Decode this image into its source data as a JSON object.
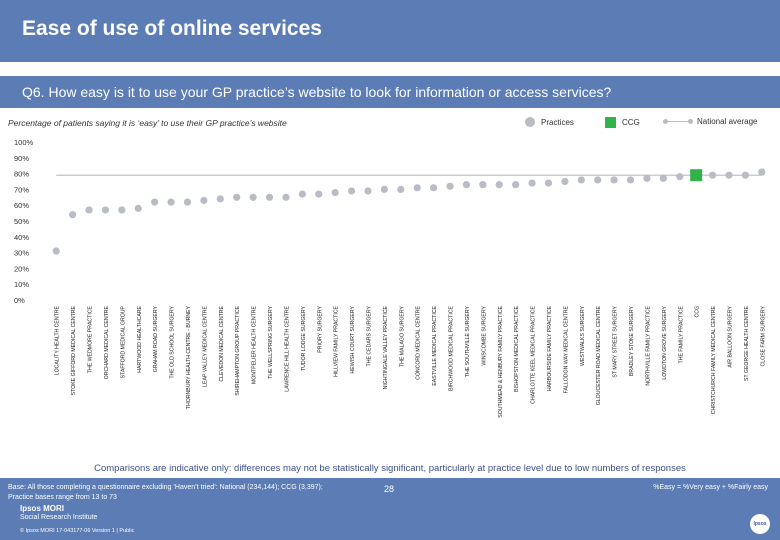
{
  "header": {
    "title": "Ease of use of online services"
  },
  "question": "Q6. How easy is it to use your GP practice’s website to look for information or access services?",
  "subtitle": "Percentage of patients saying it is ‘easy’ to use their GP practice’s website",
  "legend": {
    "practices": "Practices",
    "ccg": "CCG",
    "national": "National average"
  },
  "colors": {
    "practice_dot": "#b8bcc4",
    "ccg_marker": "#2fb34a",
    "national_line": "#b8bcc4",
    "header_bg": "#5b7cb5",
    "note_text": "#3e4f8a"
  },
  "chart_data": {
    "type": "scatter",
    "ylim": [
      0,
      100
    ],
    "yticks": [
      "0%",
      "10%",
      "20%",
      "30%",
      "40%",
      "50%",
      "60%",
      "70%",
      "80%",
      "90%",
      "100%"
    ],
    "grid": false,
    "legend_position": "top-right",
    "national_average": 79,
    "points": [
      {
        "label": "LOCALITY HEALTH CENTRE",
        "value": 31,
        "type": "practice"
      },
      {
        "label": "STOKE GIFFORD MEDICAL CENTRE",
        "value": 54,
        "type": "practice"
      },
      {
        "label": "THE WEDMORE PRACTICE",
        "value": 57,
        "type": "practice"
      },
      {
        "label": "ORCHARD MEDICAL CENTRE",
        "value": 57,
        "type": "practice"
      },
      {
        "label": "STAFFORD MEDICAL GROUP",
        "value": 57,
        "type": "practice"
      },
      {
        "label": "HARTWOOD HEALTHCARE",
        "value": 58,
        "type": "practice"
      },
      {
        "label": "GRAHAM ROAD SURGERY",
        "value": 62,
        "type": "practice"
      },
      {
        "label": "THE OLD SCHOOL SURGERY",
        "value": 62,
        "type": "practice"
      },
      {
        "label": "THORNBURY HEALTH CENTRE - BURNEY",
        "value": 62,
        "type": "practice"
      },
      {
        "label": "LEAP VALLEY MEDICAL CENTRE",
        "value": 63,
        "type": "practice"
      },
      {
        "label": "CLEVEDON MEDICAL CENTRE",
        "value": 64,
        "type": "practice"
      },
      {
        "label": "SHIREHAMPTON GROUP PRACTICE",
        "value": 65,
        "type": "practice"
      },
      {
        "label": "MONTPELIER HEALTH CENTRE",
        "value": 65,
        "type": "practice"
      },
      {
        "label": "THE WELLSPRING SURGERY",
        "value": 65,
        "type": "practice"
      },
      {
        "label": "LAWRENCE HILL HEALTH CENTRE",
        "value": 65,
        "type": "practice"
      },
      {
        "label": "TUDOR LODGE SURGERY",
        "value": 67,
        "type": "practice"
      },
      {
        "label": "PRIORY SURGERY",
        "value": 67,
        "type": "practice"
      },
      {
        "label": "HILLVIEW FAMILY PRACTICE",
        "value": 68,
        "type": "practice"
      },
      {
        "label": "HEWISH COURT SURGERY",
        "value": 69,
        "type": "practice"
      },
      {
        "label": "THE CEDARS SURGERY",
        "value": 69,
        "type": "practice"
      },
      {
        "label": "NIGHTINGALE VALLEY PRACTICE",
        "value": 70,
        "type": "practice"
      },
      {
        "label": "THE MALAGO SURGERY",
        "value": 70,
        "type": "practice"
      },
      {
        "label": "CONCORD MEDICAL CENTRE",
        "value": 71,
        "type": "practice"
      },
      {
        "label": "EASTVILLE MEDICAL PRACTICE",
        "value": 71,
        "type": "practice"
      },
      {
        "label": "BIRCHWOOD MEDICAL PRACTICE",
        "value": 72,
        "type": "practice"
      },
      {
        "label": "THE SOUTHVILLE SURGERY",
        "value": 73,
        "type": "practice"
      },
      {
        "label": "WINSCOMBE SURGERY",
        "value": 73,
        "type": "practice"
      },
      {
        "label": "SOUTHMEAD & HENBURY FAMILY PRACTICE",
        "value": 73,
        "type": "practice"
      },
      {
        "label": "BISHOPSTON MEDICAL PRACTICE",
        "value": 73,
        "type": "practice"
      },
      {
        "label": "CHARLOTTE KEEL MEDICAL PRACTICE",
        "value": 74,
        "type": "practice"
      },
      {
        "label": "HARBOURSIDE FAMILY PRACTICE",
        "value": 74,
        "type": "practice"
      },
      {
        "label": "FALLODON WAY MEDICAL CENTRE",
        "value": 75,
        "type": "practice"
      },
      {
        "label": "WESTWALKS SURGERY",
        "value": 76,
        "type": "practice"
      },
      {
        "label": "GLOUCESTER ROAD MEDICAL CENTRE",
        "value": 76,
        "type": "practice"
      },
      {
        "label": "ST MARY STREET SURGERY",
        "value": 76,
        "type": "practice"
      },
      {
        "label": "BRADLEY STOKE SURGERY",
        "value": 76,
        "type": "practice"
      },
      {
        "label": "NORTHVILLE FAMILY PRACTICE",
        "value": 77,
        "type": "practice"
      },
      {
        "label": "LOWDTON GROVE SURGERY",
        "value": 77,
        "type": "practice"
      },
      {
        "label": "THE FAMILY PRACTICE",
        "value": 78,
        "type": "practice"
      },
      {
        "label": "CCG",
        "value": 79,
        "type": "ccg"
      },
      {
        "label": "CHRISTCHURCH FAMILY MEDICAL CENTRE",
        "value": 79,
        "type": "practice"
      },
      {
        "label": "AIR BALLOON SURGERY",
        "value": 79,
        "type": "practice"
      },
      {
        "label": "ST GEORGE HEALTH CENTRE",
        "value": 79,
        "type": "practice"
      },
      {
        "label": "CLOSE FARM SURGERY",
        "value": 81,
        "type": "practice"
      }
    ]
  },
  "note": "Comparisons are indicative only: differences may not be statistically significant, particularly at practice level due to low numbers of responses",
  "footer": {
    "base_line1": "Base: All those completing a questionnaire excluding ‘Haven’t tried’: National (234,144); CCG (3,397);",
    "base_line2": "Practice bases range from 13 to 73",
    "definition": "%Easy = %Very easy + %Fairly easy",
    "logo_line1": "Ipsos MORI",
    "logo_line2": "Social Research Institute",
    "copyright": "© Ipsos MORI     17-043177-06 Version 1 | Public",
    "page_number": "28",
    "ipsos_badge": "Ipsos"
  }
}
